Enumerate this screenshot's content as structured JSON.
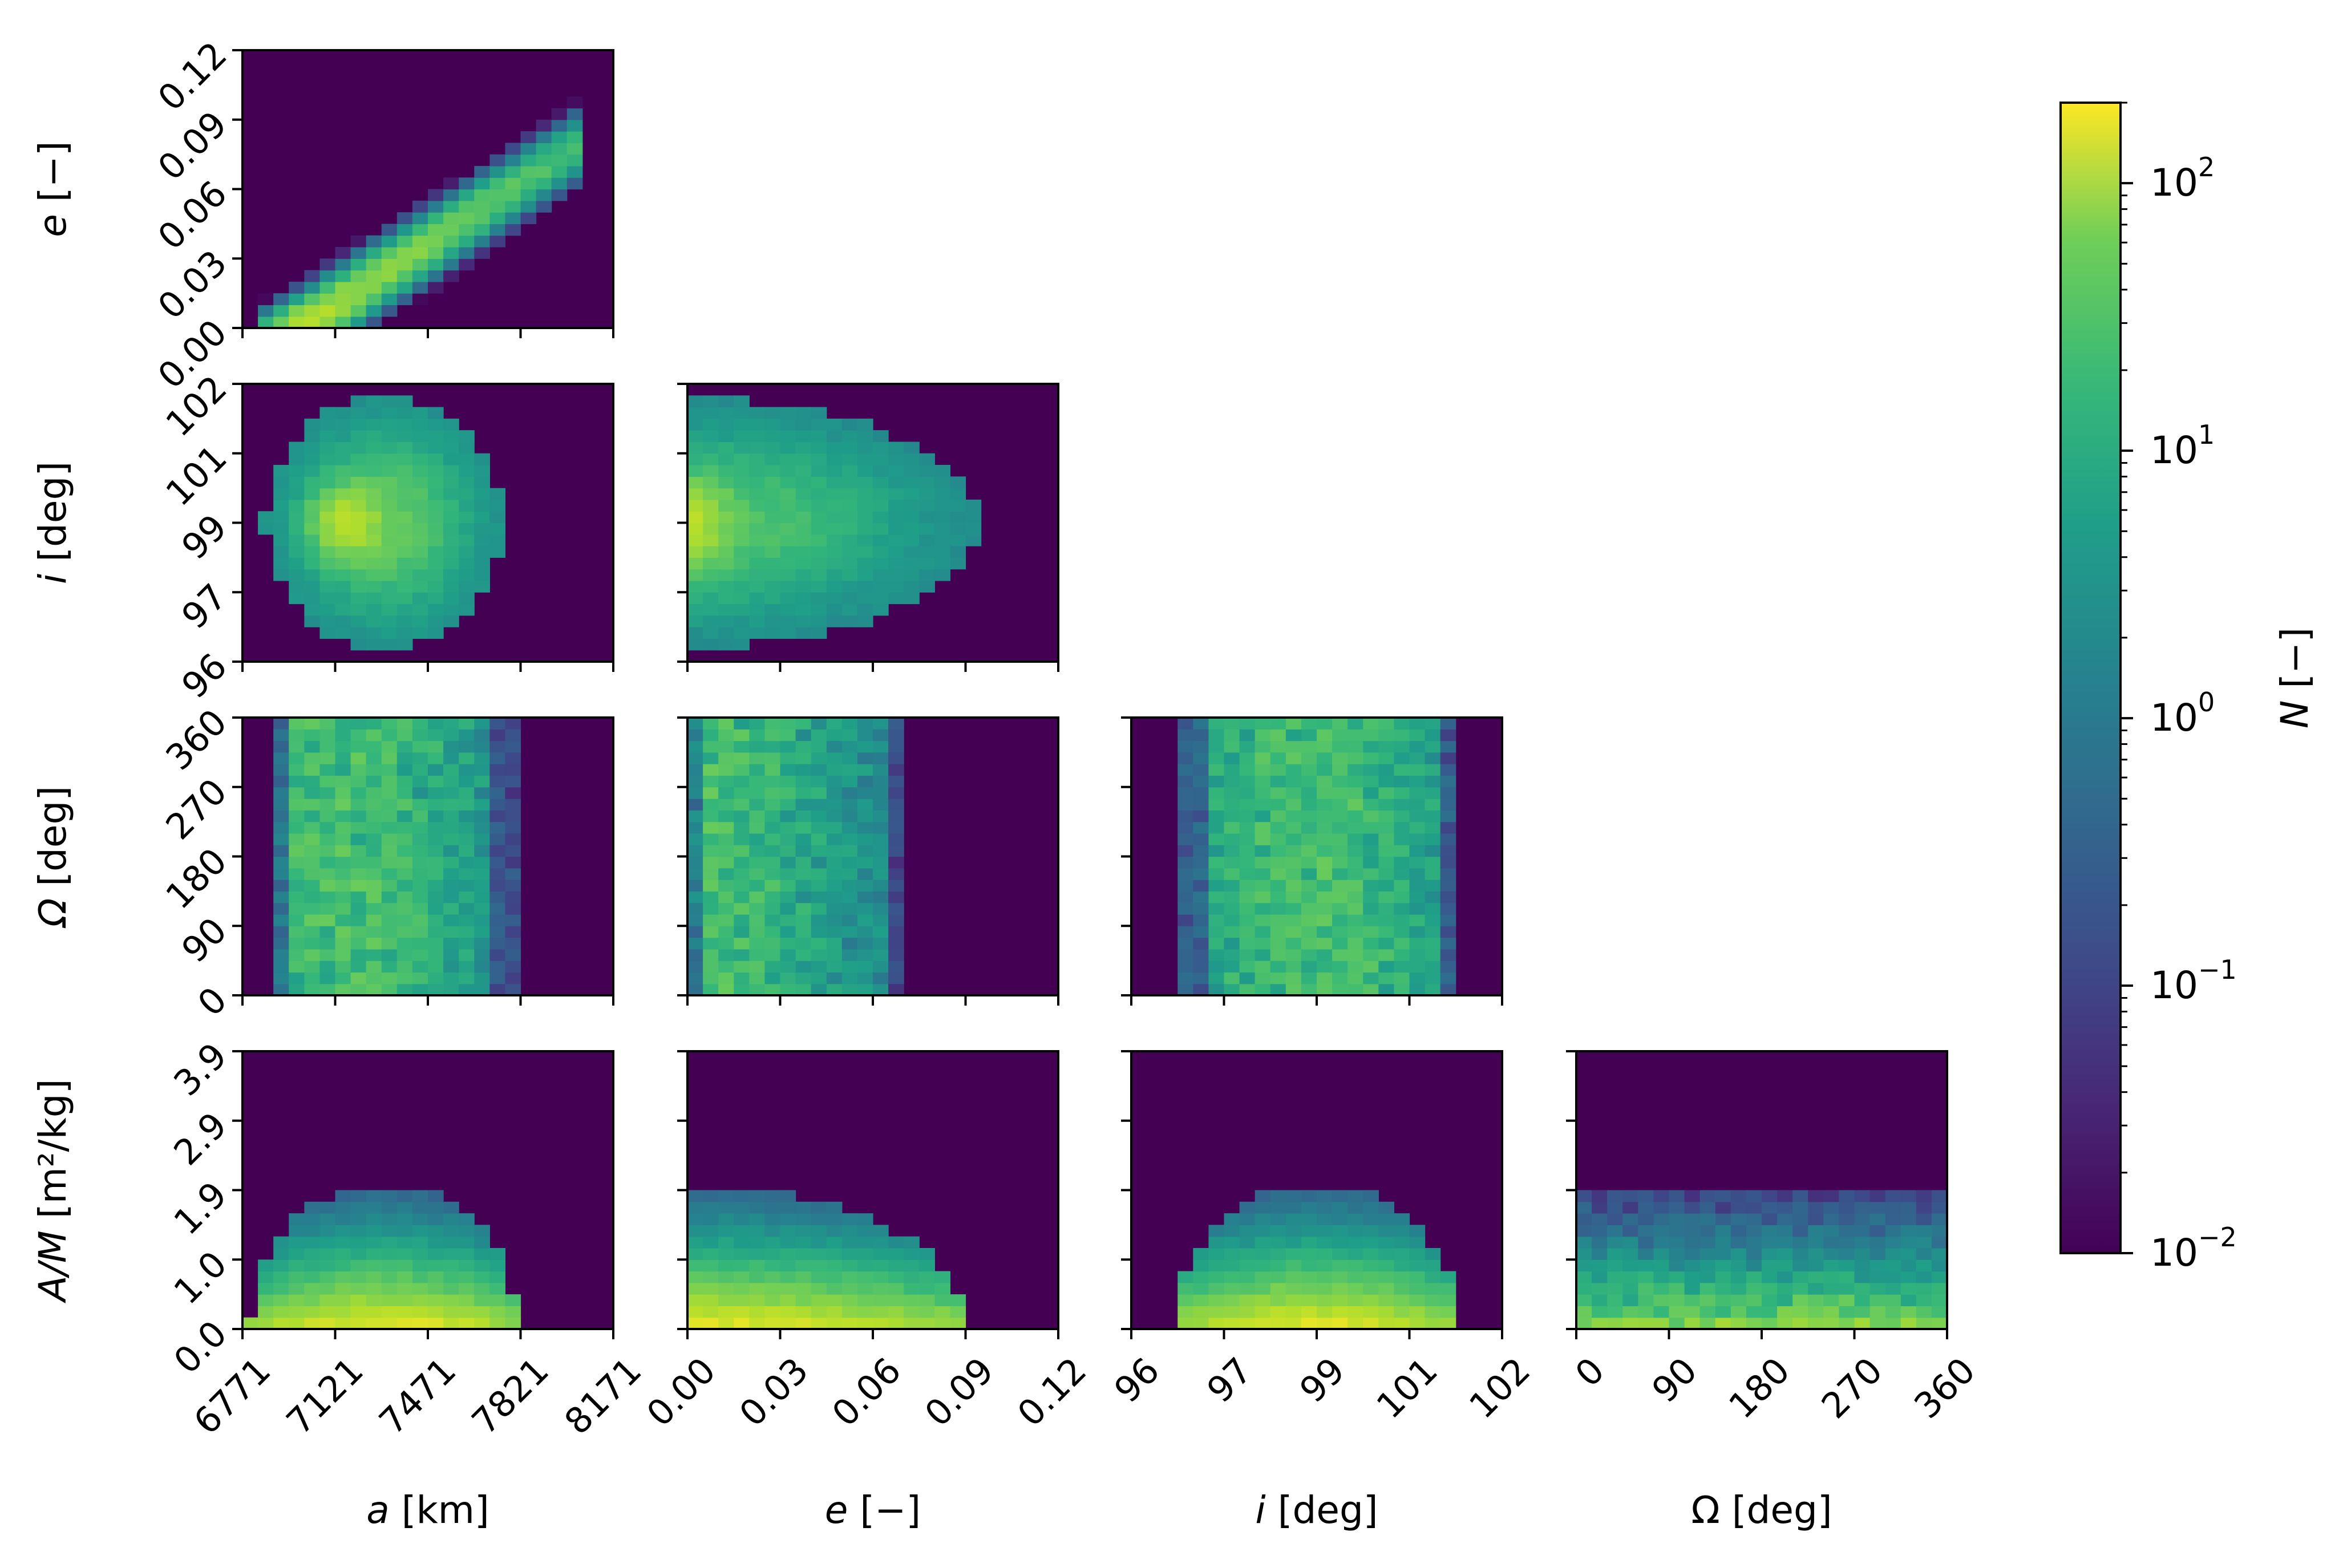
{
  "chart_data": {
    "type": "heatmap",
    "layout": "corner-plot",
    "colormap": "viridis",
    "variables": [
      {
        "key": "a",
        "label_sym": "a",
        "label_rest": " [km]",
        "range": [
          6771,
          8171
        ],
        "ticks": [
          "6771",
          "7121",
          "7471",
          "7821",
          "8171"
        ]
      },
      {
        "key": "e",
        "label_sym": "e",
        "label_rest": " [−]",
        "range": [
          0.0,
          0.12
        ],
        "ticks": [
          "0.00",
          "0.03",
          "0.06",
          "0.09",
          "0.12"
        ]
      },
      {
        "key": "i",
        "label_sym": "i",
        "label_rest": " [deg]",
        "range": [
          96,
          102
        ],
        "ticks": [
          "96",
          "97",
          "99",
          "101",
          "102"
        ]
      },
      {
        "key": "Om",
        "label_sym": "Ω",
        "label_rest": " [deg]",
        "range": [
          0,
          360
        ],
        "ticks": [
          "0",
          "90",
          "180",
          "270",
          "360"
        ]
      },
      {
        "key": "AM",
        "label_sym": "A/M",
        "label_rest": " [m²/kg]",
        "range": [
          0.0,
          3.9
        ],
        "ticks": [
          "0.0",
          "1.0",
          "1.9",
          "2.9",
          "3.9"
        ]
      }
    ],
    "colorbar": {
      "label_sym": "N",
      "label_rest": " [−]",
      "scale": "log",
      "range": [
        0.01,
        200
      ],
      "tick_values": [
        0.01,
        0.1,
        1,
        10,
        100
      ],
      "tick_labels": [
        {
          "base": "10",
          "exp": "−2"
        },
        {
          "base": "10",
          "exp": "−1"
        },
        {
          "base": "10",
          "exp": "0"
        },
        {
          "base": "10",
          "exp": "1"
        },
        {
          "base": "10",
          "exp": "2"
        }
      ]
    },
    "panels": [
      {
        "x": "a",
        "y": "e",
        "peak": 100,
        "description": "narrow diagonal band from a≈6900,e≈0 to a≈8000,e≈0.1; peak near a≈7120, e≈0.005"
      },
      {
        "x": "a",
        "y": "i",
        "peak": 60,
        "description": "roughly elliptical cloud a 6850–7650, i 96.5–101.5; peak near a≈7150, i≈99"
      },
      {
        "x": "e",
        "y": "i",
        "peak": 50,
        "description": "half-ellipse starting at e=0, extends to e≈0.08; peak near e≈0.003, i≈99"
      },
      {
        "x": "a",
        "y": "Om",
        "peak": 20,
        "description": "vertical band a 6900–7500, nearly uniform in Ω with streaks"
      },
      {
        "x": "e",
        "y": "Om",
        "peak": 20,
        "description": "band e 0–0.06, nearly uniform in Ω"
      },
      {
        "x": "i",
        "y": "Om",
        "peak": 20,
        "description": "band i 97–101, nearly uniform in Ω, brightest near 99"
      },
      {
        "x": "a",
        "y": "AM",
        "peak": 150,
        "description": "dome shape, brightest at lowest A/M row, a 6850–7800, up to A/M≈1.9"
      },
      {
        "x": "e",
        "y": "AM",
        "peak": 150,
        "description": "dome shape from e=0 to e≈0.09, brightest near e≈0 lowest rows"
      },
      {
        "x": "i",
        "y": "AM",
        "peak": 150,
        "description": "dome shape i 96.5–101.5, brightest near i≈99 lowest row"
      },
      {
        "x": "Om",
        "y": "AM",
        "peak": 40,
        "description": "horizontal bands uniform in Ω, A/M up to ≈1.9"
      }
    ]
  }
}
